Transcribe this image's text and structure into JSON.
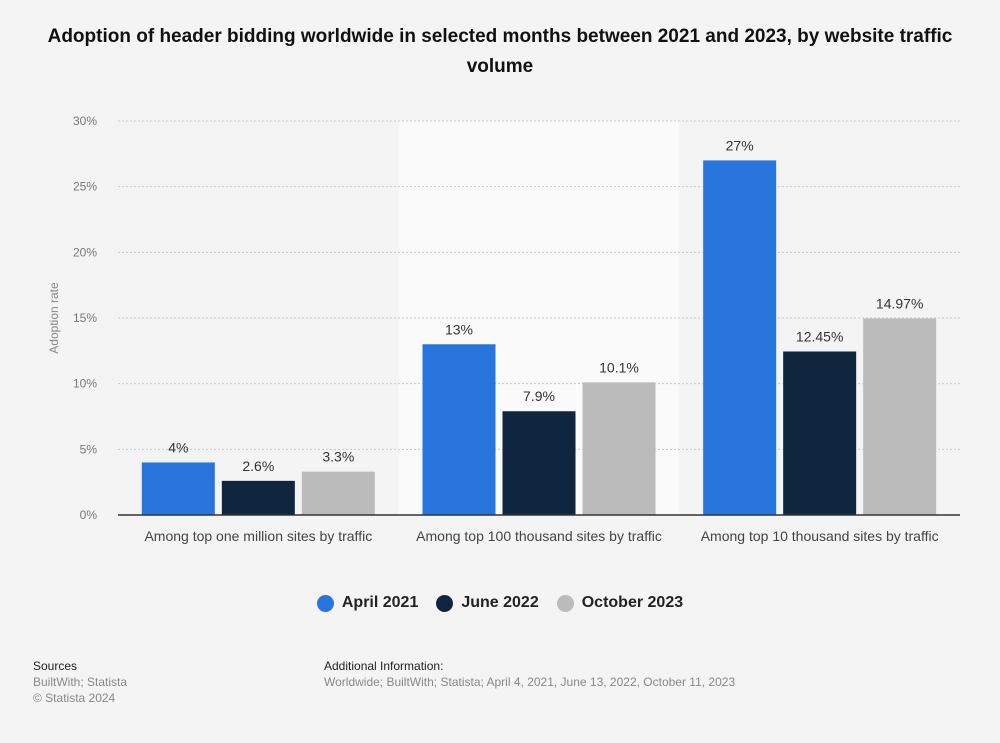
{
  "chart_data": {
    "type": "bar",
    "title": "Adoption of header bidding worldwide in selected months between 2021 and 2023, by website traffic volume",
    "ylabel": "Adoption rate",
    "xlabel": "",
    "ylim": [
      0,
      30
    ],
    "yticks": [
      "0%",
      "5%",
      "10%",
      "15%",
      "20%",
      "25%",
      "30%"
    ],
    "grid": true,
    "legend_position": "bottom",
    "categories": [
      "Among top one million sites by traffic",
      "Among top 100 thousand sites by traffic",
      "Among top 10 thousand sites by traffic"
    ],
    "series": [
      {
        "name": "April 2021",
        "color": "#2876dd",
        "values": [
          4,
          13,
          27
        ],
        "labels": [
          "4%",
          "13%",
          "27%"
        ]
      },
      {
        "name": "June 2022",
        "color": "#10263f",
        "values": [
          2.6,
          7.9,
          12.45
        ],
        "labels": [
          "2.6%",
          "7.9%",
          "12.45%"
        ]
      },
      {
        "name": "October 2023",
        "color": "#bbbbbb",
        "values": [
          3.3,
          10.1,
          14.97
        ],
        "labels": [
          "3.3%",
          "10.1%",
          "14.97%"
        ]
      }
    ]
  },
  "footer": {
    "sources_heading": "Sources",
    "sources": "BuiltWith; Statista",
    "copyright": "© Statista 2024",
    "additional_heading": "Additional Information:",
    "additional": "Worldwide; BuiltWith; Statista; April 4, 2021, June 13, 2022, October 11, 2023"
  }
}
